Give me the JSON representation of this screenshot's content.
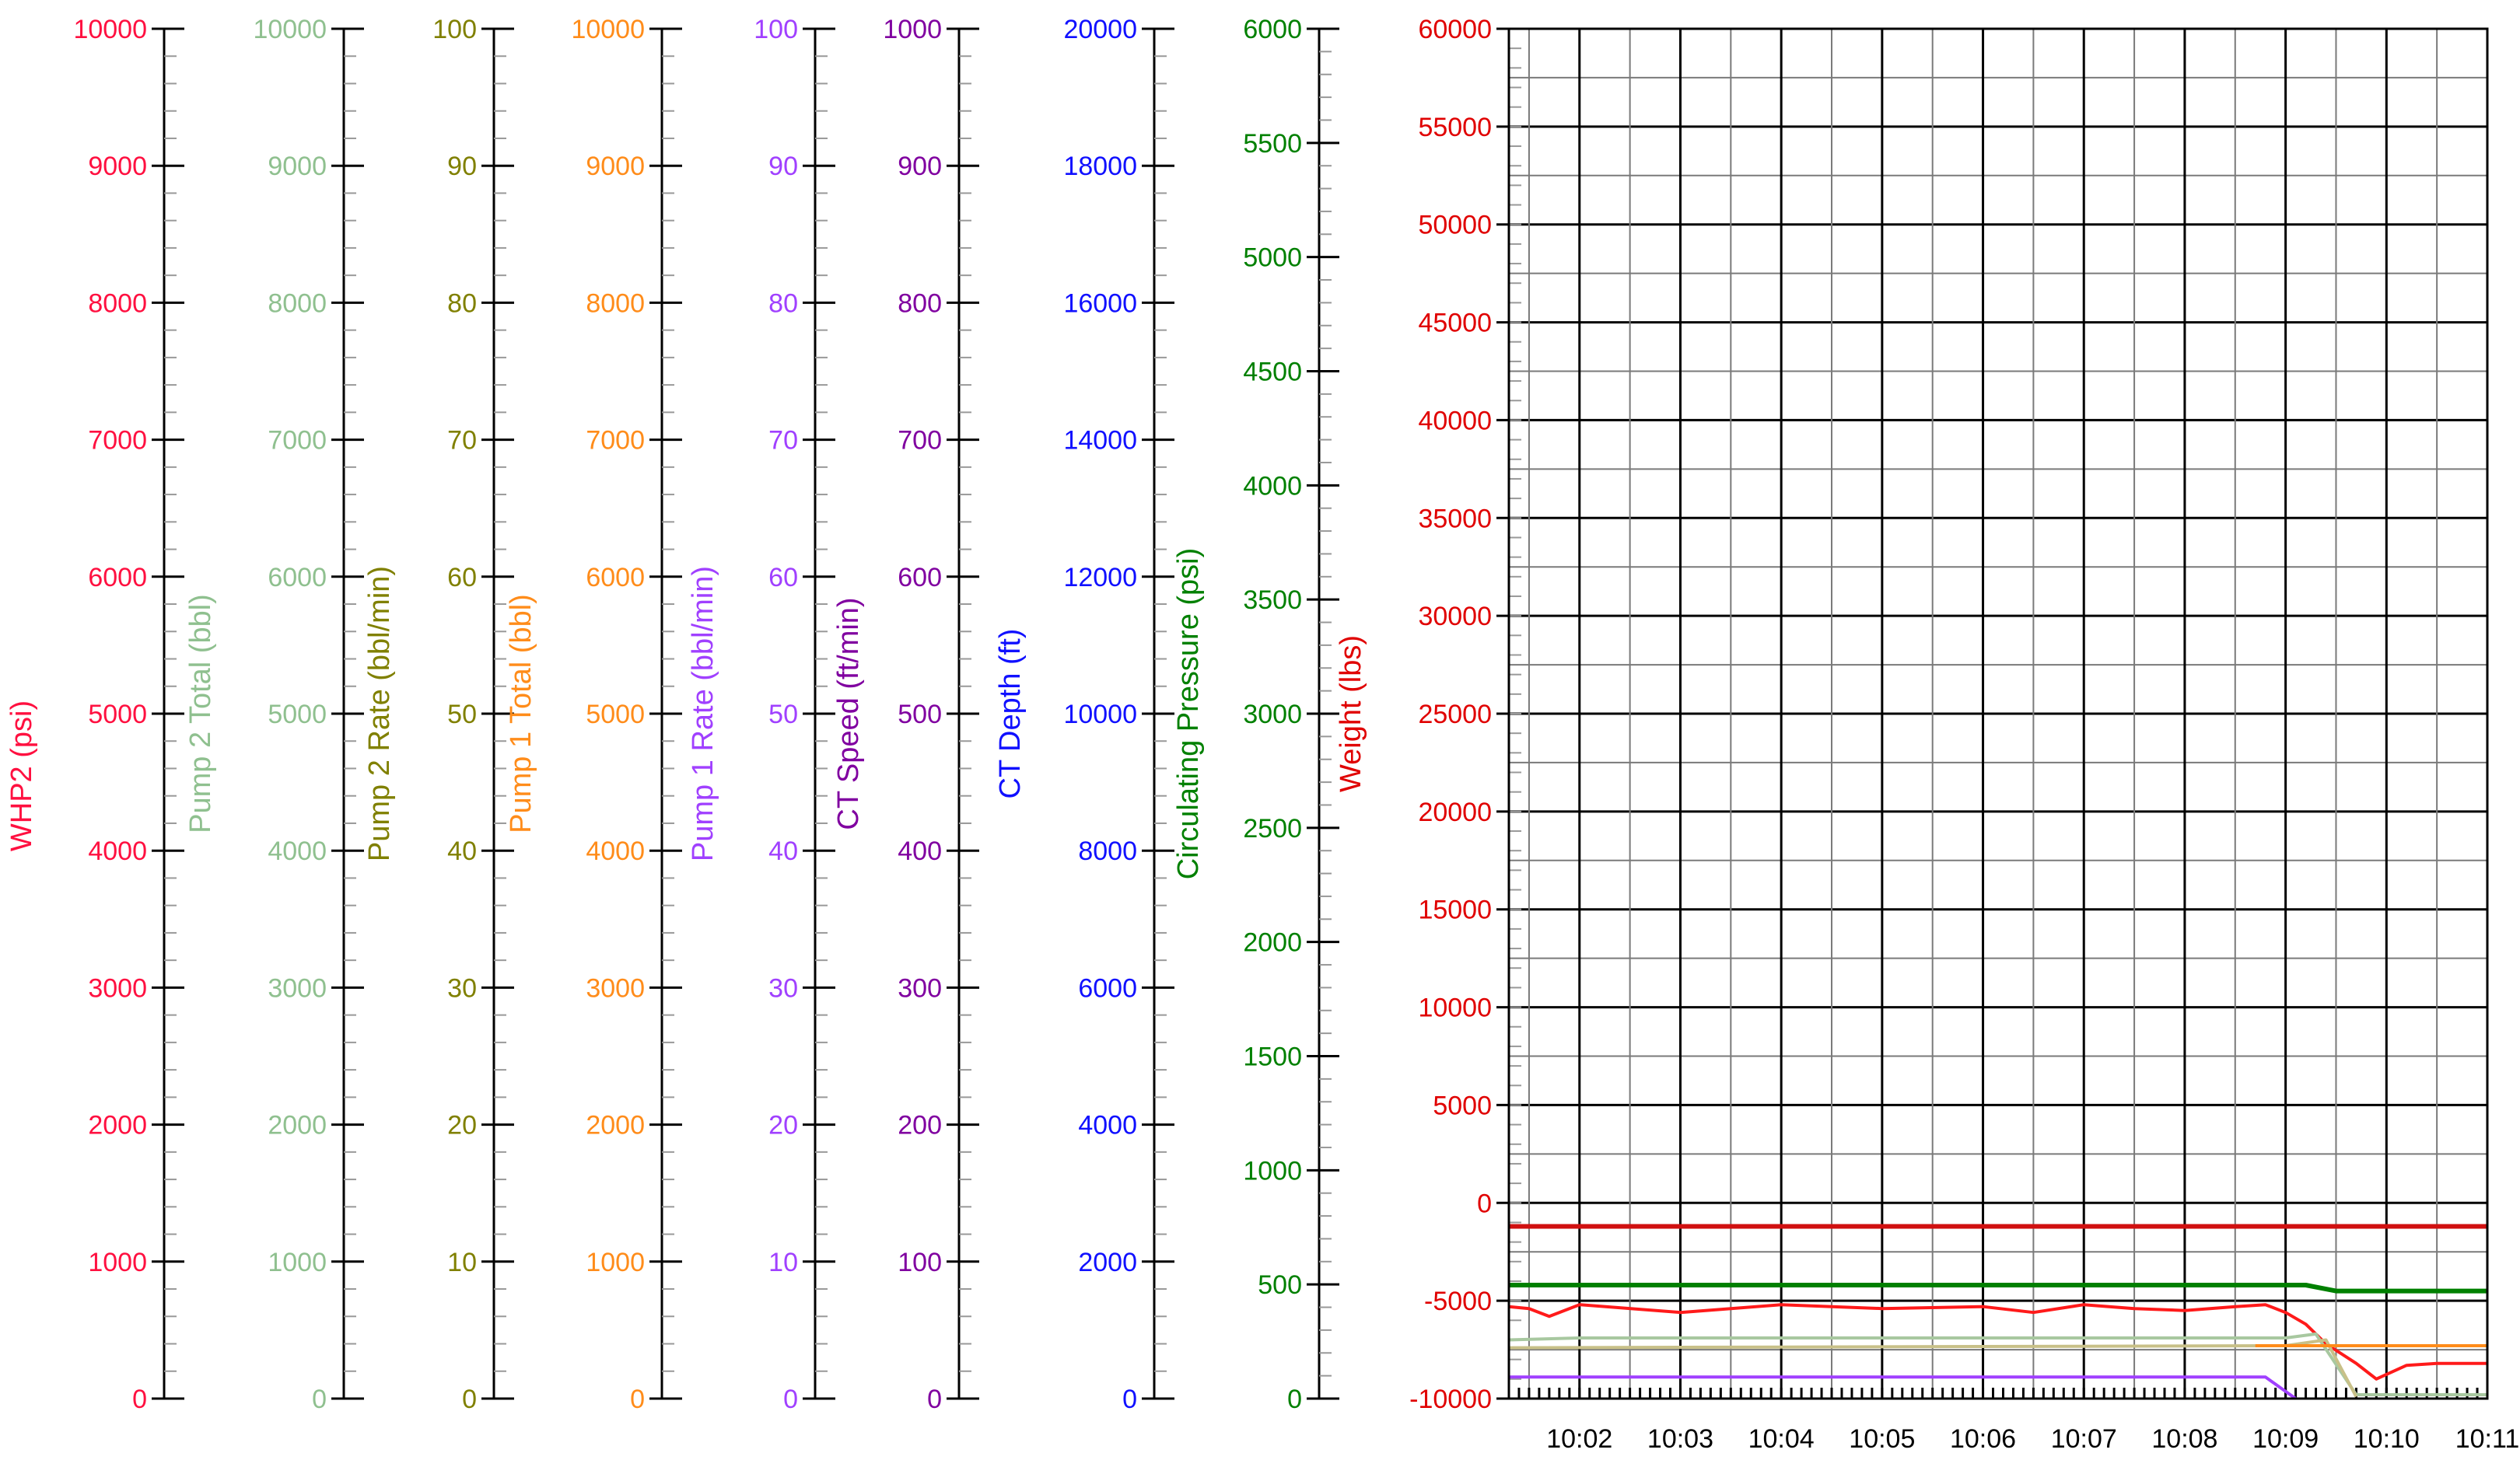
{
  "chart_data": {
    "type": "line",
    "xlabel": "",
    "x_ticks": [
      "10:02",
      "10:03",
      "10:04",
      "10:05",
      "10:06",
      "10:07",
      "10:08",
      "10:09",
      "10:10",
      "10:11"
    ],
    "x_range_minutes": [
      10.13,
      11.1
    ],
    "grid": true,
    "axes": [
      {
        "id": "whp2",
        "label": "WHP2  (psi)",
        "color": "#ff1040",
        "min": 0,
        "max": 10000,
        "step": 1000
      },
      {
        "id": "p2tot",
        "label": "Pump 2 Total  (bbl)",
        "color": "#8fc08f",
        "min": 0,
        "max": 10000,
        "step": 1000
      },
      {
        "id": "p2rate",
        "label": "Pump 2  Rate  (bbl/min)",
        "color": "#808000",
        "min": 0,
        "max": 100,
        "step": 10
      },
      {
        "id": "p1tot",
        "label": "Pump 1 Total  (bbl)",
        "color": "#ff8c1a",
        "min": 0,
        "max": 10000,
        "step": 1000
      },
      {
        "id": "p1rate",
        "label": "Pump 1 Rate  (bbl/min)",
        "color": "#a040ff",
        "min": 0,
        "max": 100,
        "step": 10
      },
      {
        "id": "ctspd",
        "label": "CT Speed  (ft/min)",
        "color": "#8000a0",
        "min": 0,
        "max": 1000,
        "step": 100
      },
      {
        "id": "ctdep",
        "label": "CT Depth  (ft)",
        "color": "#1010ff",
        "min": 0,
        "max": 20000,
        "step": 2000
      },
      {
        "id": "circ",
        "label": "Circulating Pressure  (psi)",
        "color": "#008000",
        "min": 0,
        "max": 6000,
        "step": 500
      },
      {
        "id": "wt",
        "label": "Weight  (lbs)",
        "color": "#e00000",
        "min": -10000,
        "max": 60000,
        "step": 5000
      }
    ],
    "series": [
      {
        "axis": "wt",
        "color": "#d01010",
        "x": [
          10.13,
          11.1
        ],
        "y": [
          -1200,
          -1200
        ]
      },
      {
        "axis": "wt",
        "color": "#008000",
        "x": [
          10.13,
          10.92,
          10.95,
          11.1
        ],
        "y": [
          -4200,
          -4200,
          -4500,
          -4500
        ]
      },
      {
        "axis": "wt",
        "color": "#ff1a1a",
        "x": [
          10.13,
          10.15,
          10.17,
          10.2,
          10.3,
          10.4,
          10.5,
          10.6,
          10.65,
          10.7,
          10.75,
          10.8,
          10.85,
          10.88,
          10.9,
          10.92,
          10.94,
          10.97,
          10.99,
          11.02,
          11.05,
          11.1
        ],
        "y": [
          -5300,
          -5400,
          -5800,
          -5200,
          -5600,
          -5200,
          -5400,
          -5300,
          -5600,
          -5200,
          -5400,
          -5500,
          -5300,
          -5200,
          -5600,
          -6200,
          -7200,
          -8200,
          -9000,
          -8300,
          -8200,
          -8200
        ]
      },
      {
        "axis": "wt",
        "color": "#a8c8a0",
        "x": [
          10.13,
          10.2,
          10.9,
          10.93,
          10.97,
          11.1
        ],
        "y": [
          -7000,
          -6900,
          -6900,
          -6700,
          -9800,
          -9800
        ]
      },
      {
        "axis": "wt",
        "color": "#c8c088",
        "x": [
          10.13,
          10.9,
          10.94,
          10.97
        ],
        "y": [
          -7400,
          -7300,
          -7000,
          -9900
        ]
      },
      {
        "axis": "wt",
        "color": "#ff8c1a",
        "x": [
          10.87,
          11.1
        ],
        "y": [
          -7300,
          -7300
        ]
      },
      {
        "axis": "wt",
        "color": "#a040ff",
        "x": [
          10.13,
          10.88,
          10.91
        ],
        "y": [
          -8900,
          -8900,
          -10000
        ]
      }
    ]
  }
}
